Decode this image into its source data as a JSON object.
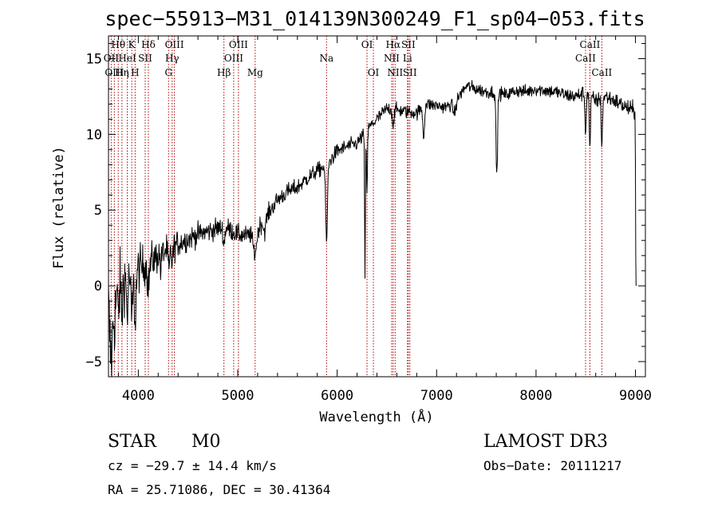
{
  "chart_data": {
    "type": "line",
    "title": "spec−55913−M31_014139N300249_F1_sp04−053.fits",
    "xlabel": "Wavelength (Å)",
    "ylabel": "Flux (relative)",
    "xlim": [
      3700,
      9100
    ],
    "ylim": [
      -6,
      16.5
    ],
    "xticks": [
      4000,
      5000,
      6000,
      7000,
      8000,
      9000
    ],
    "yticks": [
      -5,
      0,
      5,
      10,
      15
    ],
    "xtick_labels": [
      "4000",
      "5000",
      "6000",
      "7000",
      "8000",
      "9000"
    ],
    "ytick_labels": [
      "−5",
      "0",
      "5",
      "10",
      "15"
    ],
    "line_color": "#000000",
    "marker_color": "#b00000",
    "continuum": [
      [
        3700,
        -1.0
      ],
      [
        3800,
        0.3
      ],
      [
        3900,
        0.7
      ],
      [
        4000,
        1.1
      ],
      [
        4100,
        1.5
      ],
      [
        4200,
        2.0
      ],
      [
        4300,
        2.4
      ],
      [
        4400,
        2.8
      ],
      [
        4500,
        3.1
      ],
      [
        4600,
        3.4
      ],
      [
        4700,
        3.6
      ],
      [
        4800,
        3.8
      ],
      [
        4900,
        3.8
      ],
      [
        5000,
        3.4
      ],
      [
        5100,
        3.3
      ],
      [
        5200,
        3.8
      ],
      [
        5300,
        4.7
      ],
      [
        5400,
        5.7
      ],
      [
        5500,
        6.2
      ],
      [
        5600,
        6.5
      ],
      [
        5700,
        7.1
      ],
      [
        5800,
        7.6
      ],
      [
        5900,
        8.0
      ],
      [
        6000,
        8.9
      ],
      [
        6100,
        9.2
      ],
      [
        6200,
        9.4
      ],
      [
        6300,
        10.3
      ],
      [
        6400,
        11.0
      ],
      [
        6500,
        11.7
      ],
      [
        6600,
        11.6
      ],
      [
        6700,
        11.5
      ],
      [
        6800,
        11.4
      ],
      [
        6900,
        12.0
      ],
      [
        7000,
        11.9
      ],
      [
        7100,
        11.8
      ],
      [
        7200,
        12.3
      ],
      [
        7300,
        13.2
      ],
      [
        7400,
        13.0
      ],
      [
        7500,
        12.8
      ],
      [
        7600,
        12.8
      ],
      [
        7700,
        12.6
      ],
      [
        7800,
        12.9
      ],
      [
        7900,
        12.8
      ],
      [
        8000,
        13.0
      ],
      [
        8100,
        12.9
      ],
      [
        8200,
        12.8
      ],
      [
        8300,
        12.6
      ],
      [
        8400,
        12.5
      ],
      [
        8500,
        12.8
      ],
      [
        8600,
        12.2
      ],
      [
        8700,
        12.5
      ],
      [
        8800,
        12.2
      ],
      [
        8900,
        11.8
      ],
      [
        9000,
        11.5
      ]
    ],
    "features": [
      [
        3720,
        3.2,
        10
      ],
      [
        3735,
        2.5,
        8
      ],
      [
        3760,
        2.0,
        12
      ],
      [
        3798,
        2.2,
        8
      ],
      [
        3835,
        2.2,
        8
      ],
      [
        3889,
        2.5,
        8
      ],
      [
        3934,
        3.0,
        9
      ],
      [
        3968,
        3.2,
        9
      ],
      [
        4101,
        1.5,
        10
      ],
      [
        4226,
        1.0,
        6
      ],
      [
        4308,
        1.5,
        8
      ],
      [
        4340,
        1.0,
        8
      ],
      [
        4861,
        1.0,
        8
      ],
      [
        5172,
        1.5,
        18
      ],
      [
        5270,
        0.8,
        12
      ],
      [
        5893,
        5.0,
        9
      ],
      [
        6280,
        9.5,
        4
      ],
      [
        6300,
        4.0,
        5
      ],
      [
        6563,
        1.0,
        8
      ],
      [
        6870,
        2.0,
        8
      ],
      [
        7180,
        0.8,
        15
      ],
      [
        7605,
        5.5,
        8
      ],
      [
        8498,
        2.8,
        6
      ],
      [
        8542,
        3.5,
        6
      ],
      [
        8662,
        3.2,
        6
      ]
    ],
    "edge_tail": [
      [
        8995,
        11.5
      ],
      [
        9000,
        8.0
      ],
      [
        9003,
        2.0
      ],
      [
        9006,
        0.0
      ]
    ],
    "noise_sigma": [
      [
        3700,
        2.0
      ],
      [
        3900,
        1.3
      ],
      [
        4100,
        0.9
      ],
      [
        4500,
        0.55
      ],
      [
        5000,
        0.45
      ],
      [
        6000,
        0.35
      ],
      [
        7000,
        0.3
      ],
      [
        8000,
        0.32
      ],
      [
        9000,
        0.4
      ]
    ],
    "markers": [
      {
        "label": "Hθ",
        "wavelength": 3798,
        "row": 1
      },
      {
        "label": "OII",
        "wavelength": 3727,
        "row": 2
      },
      {
        "label": "HeI",
        "wavelength": 3889,
        "row": 2
      },
      {
        "label": "OIII",
        "wavelength": 3759,
        "row": 3
      },
      {
        "label": "Hη",
        "wavelength": 3835,
        "row": 3
      },
      {
        "label": "K",
        "wavelength": 3934,
        "row": 1
      },
      {
        "label": "SII",
        "wavelength": 4069,
        "row": 2
      },
      {
        "label": "H",
        "wavelength": 3968,
        "row": 3
      },
      {
        "label": "Hδ",
        "wavelength": 4101,
        "row": 1
      },
      {
        "label": "OIII",
        "wavelength": 4363,
        "row": 1
      },
      {
        "label": "Hγ",
        "wavelength": 4340,
        "row": 2
      },
      {
        "label": "G",
        "wavelength": 4304,
        "row": 3
      },
      {
        "label": "OIII",
        "wavelength": 5007,
        "row": 1
      },
      {
        "label": "OIII",
        "wavelength": 4959,
        "row": 2
      },
      {
        "label": "Hβ",
        "wavelength": 4861,
        "row": 3
      },
      {
        "label": "Mg",
        "wavelength": 5175,
        "row": 3
      },
      {
        "label": "Na",
        "wavelength": 5893,
        "row": 2
      },
      {
        "label": "OI",
        "wavelength": 6300,
        "row": 1
      },
      {
        "label": "OI",
        "wavelength": 6364,
        "row": 3
      },
      {
        "label": "Hα",
        "wavelength": 6563,
        "row": 1
      },
      {
        "label": "SII",
        "wavelength": 6716,
        "row": 1
      },
      {
        "label": "NII",
        "wavelength": 6548,
        "row": 2
      },
      {
        "label": "Li",
        "wavelength": 6707,
        "row": 2
      },
      {
        "label": "NII",
        "wavelength": 6583,
        "row": 3
      },
      {
        "label": "SII",
        "wavelength": 6731,
        "row": 3
      },
      {
        "label": "CaII",
        "wavelength": 8542,
        "row": 1
      },
      {
        "label": "CaII",
        "wavelength": 8498,
        "row": 2
      },
      {
        "label": "CaII",
        "wavelength": 8662,
        "row": 3
      }
    ]
  },
  "info": {
    "class": "STAR",
    "subclass": "M0",
    "survey": "LAMOST DR3",
    "cz": "cz = −29.7 ± 14.4 km/s",
    "obs_date": "Obs−Date: 20111217",
    "coords": "RA =  25.71086, DEC =  30.41364"
  }
}
